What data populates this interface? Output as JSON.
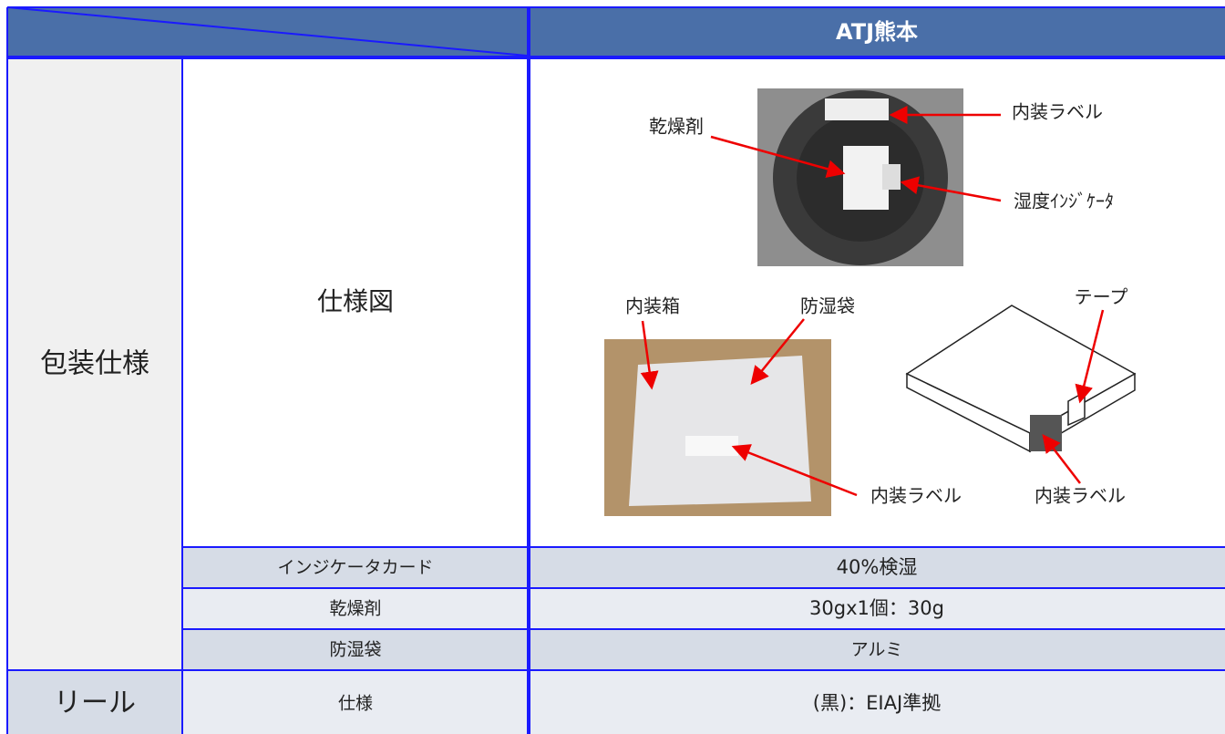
{
  "table": {
    "header": "ATJ熊本",
    "packaging": {
      "label": "包装仕様",
      "rows": [
        [
          "仕様図"
        ],
        [
          "インジケータカード",
          "40%検湿"
        ],
        [
          "乾燥剤",
          "30gx1個：30g"
        ],
        [
          "防湿袋",
          "アルミ"
        ]
      ]
    },
    "reel": {
      "label": "リール",
      "rows": [
        [
          "仕様",
          "(黒)：EIAJ準拠"
        ]
      ]
    }
  },
  "figure": {
    "labels": [
      "乾燥剤",
      "内装ラベル",
      "湿度ｲﾝｼﾞｹｰﾀ",
      "内装箱",
      "防湿袋",
      "テープ",
      "内装ラベル",
      "内装ラベル"
    ]
  }
}
